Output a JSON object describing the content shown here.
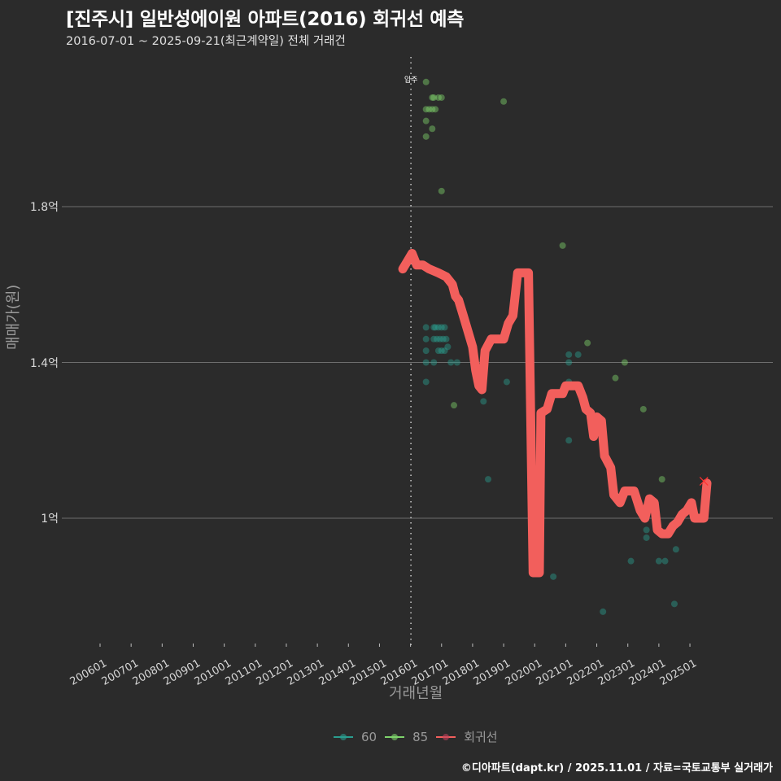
{
  "title": "[진주시] 일반성에이원 아파트(2016) 회귀선 예측",
  "subtitle": "2016-07-01 ~ 2025-09-21(최근계약일) 전체 거래건",
  "caption": "©디아파트(dapt.kr) / 2025.11.01 / 자료=국토교통부 실거래가",
  "colors": {
    "background": "#2b2b2b",
    "grid": "#6e6e6e",
    "series_60": "#2a9d8f",
    "series_85": "#7ed36b",
    "regression": "#f25f5c"
  },
  "annotation": {
    "label": "입주",
    "x": "201601"
  },
  "legend": [
    {
      "name": "60",
      "color": "#2a9d8f"
    },
    {
      "name": "85",
      "color": "#7ed36b"
    },
    {
      "name": "회귀선",
      "color": "#f25f5c"
    }
  ],
  "chart_data": {
    "type": "scatter",
    "title": "[진주시] 일반성에이원 아파트(2016) 회귀선 예측",
    "subtitle": "2016-07-01 ~ 2025-09-21(최근계약일) 전체 거래건",
    "xlabel": "거래년월",
    "ylabel": "매매가(원)",
    "x_ticks": [
      "200601",
      "200701",
      "200801",
      "200901",
      "201001",
      "201101",
      "201201",
      "201301",
      "201401",
      "201501",
      "201601",
      "201701",
      "201801",
      "201901",
      "202001",
      "202101",
      "202201",
      "202301",
      "202401",
      "202501"
    ],
    "y_ticks": [
      {
        "value": 1.0,
        "label": "1억"
      },
      {
        "value": 1.4,
        "label": "1.4억"
      },
      {
        "value": 1.8,
        "label": "1.8억"
      }
    ],
    "ylim": [
      0.68,
      2.2
    ],
    "grid": "horizontal major only",
    "legend_position": "bottom",
    "vline": {
      "x": 2016.0,
      "label": "입주",
      "style": "dotted"
    },
    "series": [
      {
        "name": "60",
        "type": "scatter",
        "unit": "억",
        "points": [
          [
            2016.5,
            1.49
          ],
          [
            2016.5,
            1.46
          ],
          [
            2016.5,
            1.43
          ],
          [
            2016.5,
            1.4
          ],
          [
            2016.5,
            1.35
          ],
          [
            2016.75,
            1.49
          ],
          [
            2016.8,
            1.49
          ],
          [
            2016.9,
            1.49
          ],
          [
            2017.0,
            1.49
          ],
          [
            2017.1,
            1.49
          ],
          [
            2016.75,
            1.46
          ],
          [
            2016.85,
            1.46
          ],
          [
            2016.95,
            1.46
          ],
          [
            2017.05,
            1.46
          ],
          [
            2017.15,
            1.46
          ],
          [
            2016.9,
            1.43
          ],
          [
            2017.0,
            1.43
          ],
          [
            2017.1,
            1.43
          ],
          [
            2017.2,
            1.44
          ],
          [
            2016.75,
            1.4
          ],
          [
            2017.3,
            1.4
          ],
          [
            2017.5,
            1.4
          ],
          [
            2018.35,
            1.3
          ],
          [
            2019.1,
            1.35
          ],
          [
            2018.5,
            1.1
          ],
          [
            2020.6,
            0.85
          ],
          [
            2021.1,
            1.42
          ],
          [
            2021.1,
            1.4
          ],
          [
            2021.1,
            1.35
          ],
          [
            2021.4,
            1.42
          ],
          [
            2021.1,
            1.2
          ],
          [
            2022.2,
            0.76
          ],
          [
            2023.1,
            0.89
          ],
          [
            2023.6,
            0.97
          ],
          [
            2023.6,
            0.95
          ],
          [
            2024.0,
            0.89
          ],
          [
            2024.2,
            0.89
          ],
          [
            2024.5,
            0.78
          ],
          [
            2024.55,
            0.92
          ]
        ]
      },
      {
        "name": "85",
        "type": "scatter",
        "unit": "억",
        "points": [
          [
            2016.5,
            2.12
          ],
          [
            2016.7,
            2.08
          ],
          [
            2016.75,
            2.08
          ],
          [
            2016.9,
            2.08
          ],
          [
            2017.0,
            2.08
          ],
          [
            2016.5,
            2.05
          ],
          [
            2016.6,
            2.05
          ],
          [
            2016.7,
            2.05
          ],
          [
            2016.8,
            2.05
          ],
          [
            2016.5,
            2.02
          ],
          [
            2016.7,
            2.0
          ],
          [
            2016.5,
            1.98
          ],
          [
            2017.0,
            1.84
          ],
          [
            2019.0,
            2.07
          ],
          [
            2017.4,
            1.29
          ],
          [
            2020.9,
            1.7
          ],
          [
            2021.7,
            1.45
          ],
          [
            2022.6,
            1.36
          ],
          [
            2022.9,
            1.4
          ],
          [
            2023.5,
            1.28
          ],
          [
            2024.1,
            1.1
          ]
        ]
      },
      {
        "name": "회귀선",
        "type": "line",
        "unit": "억",
        "points": [
          [
            2015.75,
            1.64
          ],
          [
            2015.9,
            1.66
          ],
          [
            2016.05,
            1.68
          ],
          [
            2016.2,
            1.65
          ],
          [
            2016.4,
            1.65
          ],
          [
            2016.6,
            1.64
          ],
          [
            2016.9,
            1.63
          ],
          [
            2017.15,
            1.62
          ],
          [
            2017.35,
            1.6
          ],
          [
            2017.45,
            1.57
          ],
          [
            2017.55,
            1.56
          ],
          [
            2017.7,
            1.52
          ],
          [
            2017.85,
            1.48
          ],
          [
            2018.0,
            1.44
          ],
          [
            2018.1,
            1.38
          ],
          [
            2018.2,
            1.34
          ],
          [
            2018.3,
            1.33
          ],
          [
            2018.4,
            1.43
          ],
          [
            2018.6,
            1.46
          ],
          [
            2019.0,
            1.46
          ],
          [
            2019.15,
            1.5
          ],
          [
            2019.3,
            1.52
          ],
          [
            2019.45,
            1.63
          ],
          [
            2019.8,
            1.63
          ],
          [
            2019.95,
            0.86
          ],
          [
            2020.15,
            0.86
          ],
          [
            2020.2,
            1.27
          ],
          [
            2020.4,
            1.28
          ],
          [
            2020.55,
            1.32
          ],
          [
            2020.9,
            1.32
          ],
          [
            2021.0,
            1.34
          ],
          [
            2021.4,
            1.34
          ],
          [
            2021.55,
            1.31
          ],
          [
            2021.65,
            1.28
          ],
          [
            2021.8,
            1.27
          ],
          [
            2021.9,
            1.21
          ],
          [
            2022.0,
            1.26
          ],
          [
            2022.15,
            1.25
          ],
          [
            2022.25,
            1.16
          ],
          [
            2022.45,
            1.13
          ],
          [
            2022.55,
            1.06
          ],
          [
            2022.75,
            1.04
          ],
          [
            2022.9,
            1.07
          ],
          [
            2023.2,
            1.07
          ],
          [
            2023.4,
            1.02
          ],
          [
            2023.55,
            1.0
          ],
          [
            2023.7,
            1.05
          ],
          [
            2023.85,
            1.04
          ],
          [
            2023.95,
            0.97
          ],
          [
            2024.1,
            0.96
          ],
          [
            2024.3,
            0.96
          ],
          [
            2024.45,
            0.98
          ],
          [
            2024.6,
            0.99
          ],
          [
            2024.75,
            1.01
          ],
          [
            2024.9,
            1.02
          ],
          [
            2025.05,
            1.04
          ],
          [
            2025.15,
            1.0
          ],
          [
            2025.45,
            1.0
          ],
          [
            2025.55,
            1.09
          ]
        ]
      }
    ]
  },
  "axes": {
    "y_ticks": [
      "1억",
      "1.4억",
      "1.8억"
    ],
    "ylabel": "매매가(원)",
    "xlabel": "거래년월",
    "x_ticks": [
      "200601",
      "200701",
      "200801",
      "200901",
      "201001",
      "201101",
      "201201",
      "201301",
      "201401",
      "201501",
      "201601",
      "201701",
      "201801",
      "201901",
      "202001",
      "202101",
      "202201",
      "202301",
      "202401",
      "202501"
    ]
  }
}
